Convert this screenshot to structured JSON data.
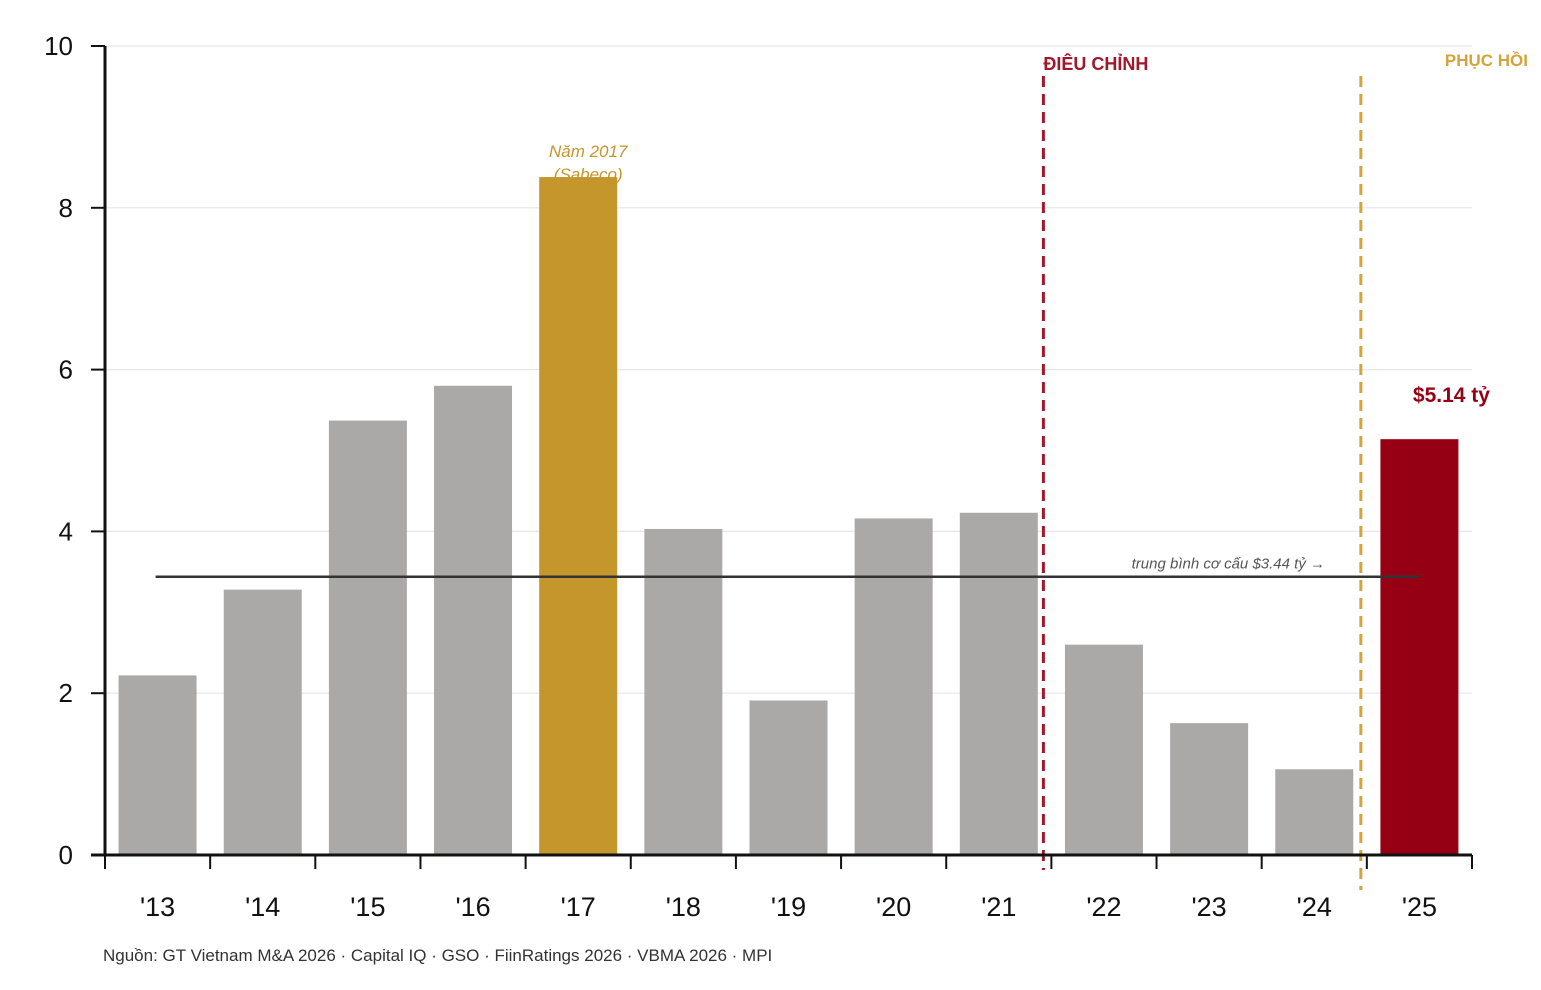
{
  "chart_data": {
    "type": "bar",
    "categories": [
      "'13",
      "'14",
      "'15",
      "'16",
      "'17",
      "'18",
      "'19",
      "'20",
      "'21",
      "'22",
      "'23",
      "'24",
      "'25"
    ],
    "values": [
      2.22,
      3.28,
      5.37,
      5.8,
      8.38,
      4.03,
      1.91,
      4.16,
      4.23,
      2.6,
      1.63,
      1.06,
      5.14
    ],
    "bar_colors": [
      "#aaa9a8",
      "#aaa9a8",
      "#aaa9a8",
      "#aaa9a8",
      "#c4962b",
      "#aaa9a8",
      "#aaa9a8",
      "#aaa9a8",
      "#aaa9a8",
      "#aaa9a8",
      "#aaa9a8",
      "#aaa9a8",
      "#960014"
    ],
    "ylim": [
      0,
      10
    ],
    "yticks": [
      0,
      2,
      4,
      6,
      8,
      10
    ],
    "grid": true,
    "average": {
      "value": 3.44,
      "label": "trung bình cơ cấu $3.44 tỷ →"
    },
    "annotations": {
      "highlight_2017": [
        "Năm 2017",
        "(Sabeco)"
      ],
      "last_value": "$5.14 tỷ",
      "correction": {
        "label": "ĐIÊU CHỈNH",
        "color": "#a0182a"
      },
      "recovery": {
        "label": "PHỤC HỒI",
        "color": "#d4a43a"
      }
    },
    "source": "Nguồn: GT Vietnam M&A 2026  ·  Capital IQ  ·  GSO  ·  FiinRatings 2026  ·  VBMA 2026  ·  MPI"
  }
}
